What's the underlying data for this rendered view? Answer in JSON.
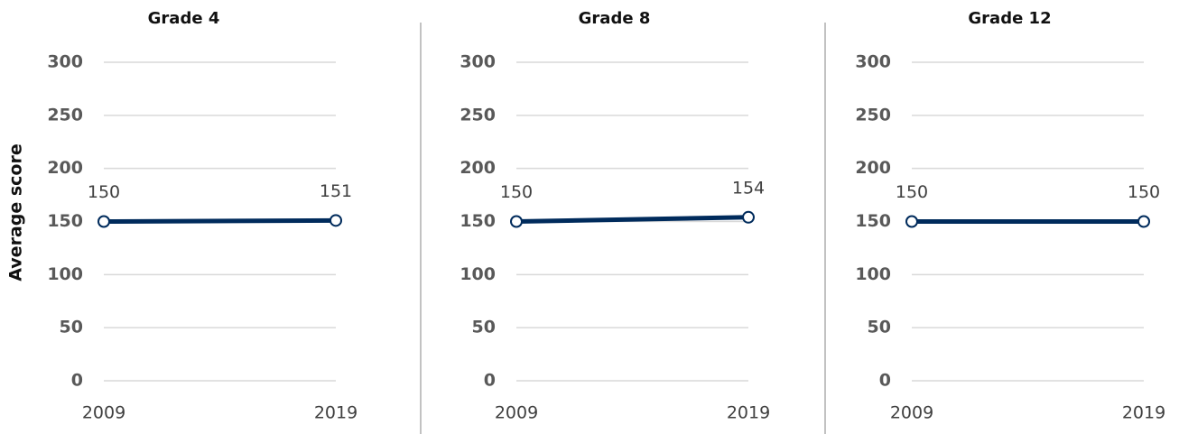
{
  "chart_data": [
    {
      "type": "line",
      "title": "Grade 4",
      "y_label": "Average score",
      "categories": [
        "2009",
        "2019"
      ],
      "series": [
        {
          "color": "#002b5c",
          "values": [
            150,
            151
          ]
        }
      ],
      "ylim": [
        0,
        300
      ],
      "yticks": [
        0,
        50,
        100,
        150,
        200,
        250,
        300
      ],
      "grid": true
    },
    {
      "type": "line",
      "title": "Grade 8",
      "categories": [
        "2009",
        "2019"
      ],
      "series": [
        {
          "color": "#002b5c",
          "values": [
            150,
            154
          ]
        }
      ],
      "ylim": [
        0,
        300
      ],
      "yticks": [
        0,
        50,
        100,
        150,
        200,
        250,
        300
      ],
      "grid": true
    },
    {
      "type": "line",
      "title": "Grade 12",
      "categories": [
        "2009",
        "2019"
      ],
      "series": [
        {
          "color": "#002b5c",
          "values": [
            150,
            150
          ]
        }
      ],
      "ylim": [
        0,
        300
      ],
      "yticks": [
        0,
        50,
        100,
        150,
        200,
        250,
        300
      ],
      "grid": true
    }
  ]
}
